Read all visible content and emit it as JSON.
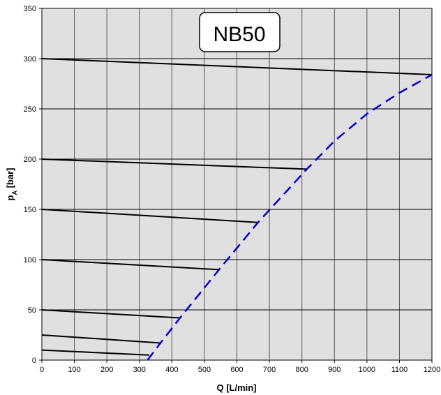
{
  "chart_data": {
    "type": "line",
    "title": "NB50",
    "xlabel": "Q [L/min]",
    "ylabel_main": "p",
    "ylabel_sub": "A",
    "ylabel_unit": " [bar]",
    "xlim": [
      0,
      1200
    ],
    "ylim": [
      0,
      350
    ],
    "x_ticks": [
      0,
      100,
      200,
      300,
      400,
      500,
      600,
      700,
      800,
      900,
      1000,
      1100,
      1200
    ],
    "y_ticks": [
      0,
      50,
      100,
      150,
      200,
      250,
      300,
      350
    ],
    "grid": true,
    "colors": {
      "plot_bg": "#e0e0e0",
      "grid": "#555555",
      "pressure_lines": "#000000",
      "limit_curve": "#0000cc"
    },
    "series": [
      {
        "style": "solid",
        "points": [
          [
            0,
            300
          ],
          [
            1200,
            284
          ]
        ]
      },
      {
        "style": "solid",
        "points": [
          [
            0,
            200
          ],
          [
            815,
            190
          ]
        ]
      },
      {
        "style": "solid",
        "points": [
          [
            0,
            150
          ],
          [
            665,
            137
          ]
        ]
      },
      {
        "style": "solid",
        "points": [
          [
            0,
            100
          ],
          [
            545,
            90
          ]
        ]
      },
      {
        "style": "solid",
        "points": [
          [
            0,
            50
          ],
          [
            425,
            42
          ]
        ]
      },
      {
        "style": "solid",
        "points": [
          [
            0,
            25
          ],
          [
            365,
            17
          ]
        ]
      },
      {
        "style": "solid",
        "points": [
          [
            0,
            10
          ],
          [
            330,
            5
          ]
        ]
      },
      {
        "style": "dashed",
        "points": [
          [
            325,
            0
          ],
          [
            365,
            17
          ],
          [
            425,
            42
          ],
          [
            545,
            90
          ],
          [
            665,
            137
          ],
          [
            815,
            190
          ],
          [
            900,
            218
          ],
          [
            1000,
            245
          ],
          [
            1100,
            266
          ],
          [
            1200,
            284
          ]
        ]
      }
    ]
  }
}
